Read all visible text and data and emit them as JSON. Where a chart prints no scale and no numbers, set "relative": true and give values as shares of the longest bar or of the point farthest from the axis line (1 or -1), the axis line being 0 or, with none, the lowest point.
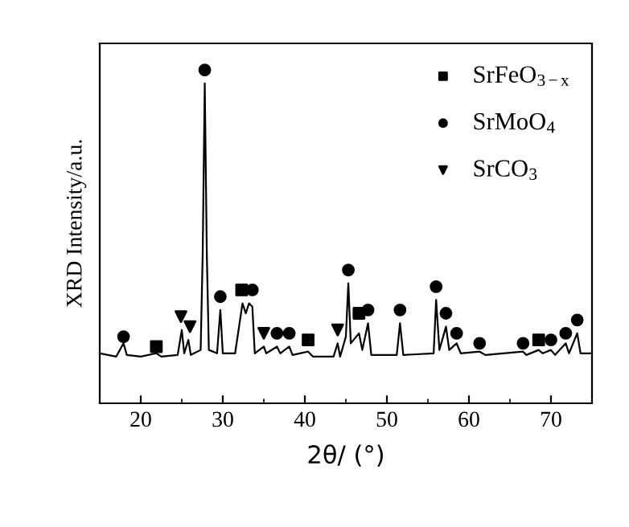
{
  "chart_data": {
    "type": "line",
    "relative": true,
    "xlabel": "2θ/ (°)",
    "ylabel": "XRD Intensity/a.u.",
    "xlim": [
      15,
      75
    ],
    "xticks": [
      20,
      30,
      40,
      50,
      60,
      70
    ],
    "grid": false,
    "legend": "top right",
    "tick_labels": "x",
    "series": [
      {
        "color": "#000000",
        "marker": "none",
        "x": [
          15,
          17,
          17.9,
          18.3,
          20,
          21.9,
          22.5,
          24.5,
          25.0,
          25.3,
          25.8,
          26.1,
          27.3,
          27.55,
          27.8,
          28.05,
          28.3,
          29.3,
          29.7,
          30.0,
          31.5,
          32.4,
          32.8,
          33.2,
          33.6,
          33.9,
          35.0,
          35.3,
          36.6,
          37,
          38.1,
          38.5,
          40.4,
          41,
          43.5,
          44.0,
          44.3,
          45.0,
          45.3,
          45.6,
          46.6,
          47.0,
          47.7,
          48.1,
          51.2,
          51.6,
          52,
          55.7,
          56.0,
          56.4,
          57.2,
          57.6,
          58.5,
          59,
          61.3,
          62,
          66.6,
          67,
          68.5,
          69,
          70.0,
          70.5,
          71.8,
          72.2,
          73.2,
          73.6,
          75
        ],
        "values": [
          0.15,
          0.14,
          0.18,
          0.145,
          0.14,
          0.15,
          0.14,
          0.145,
          0.22,
          0.15,
          0.19,
          0.145,
          0.16,
          0.45,
          0.96,
          0.45,
          0.16,
          0.15,
          0.28,
          0.15,
          0.15,
          0.3,
          0.27,
          0.3,
          0.29,
          0.15,
          0.17,
          0.15,
          0.17,
          0.15,
          0.17,
          0.145,
          0.155,
          0.14,
          0.14,
          0.18,
          0.14,
          0.2,
          0.36,
          0.18,
          0.21,
          0.16,
          0.24,
          0.145,
          0.145,
          0.24,
          0.145,
          0.15,
          0.31,
          0.16,
          0.23,
          0.16,
          0.18,
          0.15,
          0.155,
          0.145,
          0.155,
          0.145,
          0.16,
          0.15,
          0.16,
          0.145,
          0.18,
          0.15,
          0.21,
          0.15,
          0.15
        ]
      },
      {
        "type": "scatter",
        "name": "SrFeO$_{3−x}$",
        "color": "#000000",
        "marker": "square",
        "x": [
          21.9,
          32.3,
          40.4,
          46.6,
          68.5
        ],
        "values": [
          0.17,
          0.34,
          0.19,
          0.27,
          0.19
        ]
      },
      {
        "type": "scatter",
        "name": "SrMoO$_{4}$",
        "color": "#000000",
        "marker": "circle",
        "x": [
          17.9,
          27.8,
          29.7,
          33.6,
          36.6,
          38.1,
          45.3,
          47.7,
          51.6,
          56.0,
          57.2,
          58.5,
          61.3,
          66.6,
          70.0,
          71.8,
          73.2
        ],
        "values": [
          0.2,
          1,
          0.32,
          0.34,
          0.21,
          0.21,
          0.4,
          0.28,
          0.28,
          0.35,
          0.27,
          0.21,
          0.18,
          0.18,
          0.19,
          0.21,
          0.25
        ]
      },
      {
        "type": "scatter",
        "name": "SrCO$_{3}$",
        "color": "#000000",
        "marker": "triangle",
        "x": [
          24.9,
          26.0,
          35.0,
          44.0
        ],
        "values": [
          0.26,
          0.23,
          0.21,
          0.22
        ]
      }
    ]
  }
}
